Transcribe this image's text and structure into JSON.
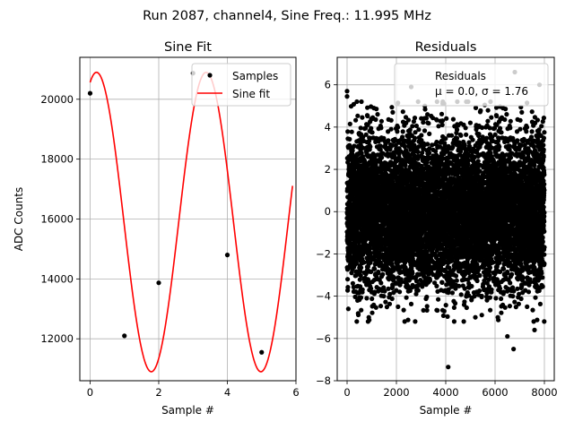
{
  "figure_title": "Run 2087, channel4, Sine Freq.: 11.995 MHz",
  "chart_data": [
    {
      "type": "line",
      "title": "Sine Fit",
      "xlabel": "Sample #",
      "ylabel": "ADC Counts",
      "xlim": [
        -0.3,
        6.0
      ],
      "ylim": [
        10600,
        21400
      ],
      "xticks": [
        0,
        2,
        4,
        6
      ],
      "xtick_labels": [
        "0",
        "2",
        "4",
        "6"
      ],
      "yticks": [
        12000,
        14000,
        16000,
        18000,
        20000
      ],
      "ytick_labels": [
        "12000",
        "14000",
        "16000",
        "18000",
        "20000"
      ],
      "grid": true,
      "legend": {
        "placement": "top-right",
        "entries": [
          "Samples",
          "Sine fit"
        ]
      },
      "series": [
        {
          "name": "Samples",
          "kind": "scatter",
          "color": "#000000",
          "x": [
            0,
            1,
            2,
            3,
            4,
            5
          ],
          "y": [
            20200,
            12100,
            13870,
            20870,
            14800,
            11550
          ]
        },
        {
          "name": "Sine fit",
          "kind": "line",
          "color": "#ff0000",
          "model": "offset + amplitude*sin(omega*x + phase)",
          "offset": 15900,
          "amplitude": 5000,
          "omega": 1.9676,
          "phase": 1.2019,
          "x_range": [
            0,
            5.9
          ]
        }
      ]
    },
    {
      "type": "scatter",
      "title": "Residuals",
      "xlabel": "Sample #",
      "ylabel": "",
      "xlim": [
        -400,
        8400
      ],
      "ylim": [
        -8.0,
        7.3
      ],
      "xticks": [
        0,
        2000,
        4000,
        6000,
        8000
      ],
      "xtick_labels": [
        "0",
        "2000",
        "4000",
        "6000",
        "8000"
      ],
      "yticks": [
        -8,
        -6,
        -4,
        -2,
        0,
        2,
        4,
        6
      ],
      "ytick_labels": [
        "−8",
        "−6",
        "−4",
        "−2",
        "0",
        "2",
        "4",
        "6"
      ],
      "grid": true,
      "legend": {
        "placement": "top-right",
        "entries": [
          "Residuals",
          "μ = 0.0, σ = 1.76"
        ]
      },
      "series": [
        {
          "name": "Residuals",
          "color": "#000000",
          "n_points": 8000,
          "x_range": [
            0,
            7999
          ],
          "mean": 0.0,
          "std": 1.76,
          "outliers": [
            {
              "x": 4100,
              "y": -7.35
            },
            {
              "x": 6800,
              "y": 6.6
            },
            {
              "x": 6750,
              "y": -6.5
            },
            {
              "x": 6500,
              "y": -5.9
            },
            {
              "x": 0,
              "y": 5.7
            },
            {
              "x": 0,
              "y": 5.45
            },
            {
              "x": 2600,
              "y": 5.9
            },
            {
              "x": 850,
              "y": -5.2
            },
            {
              "x": 5200,
              "y": -5.0
            },
            {
              "x": 7800,
              "y": 6.0
            },
            {
              "x": 7600,
              "y": -5.6
            },
            {
              "x": 50,
              "y": -4.6
            }
          ]
        }
      ]
    }
  ]
}
